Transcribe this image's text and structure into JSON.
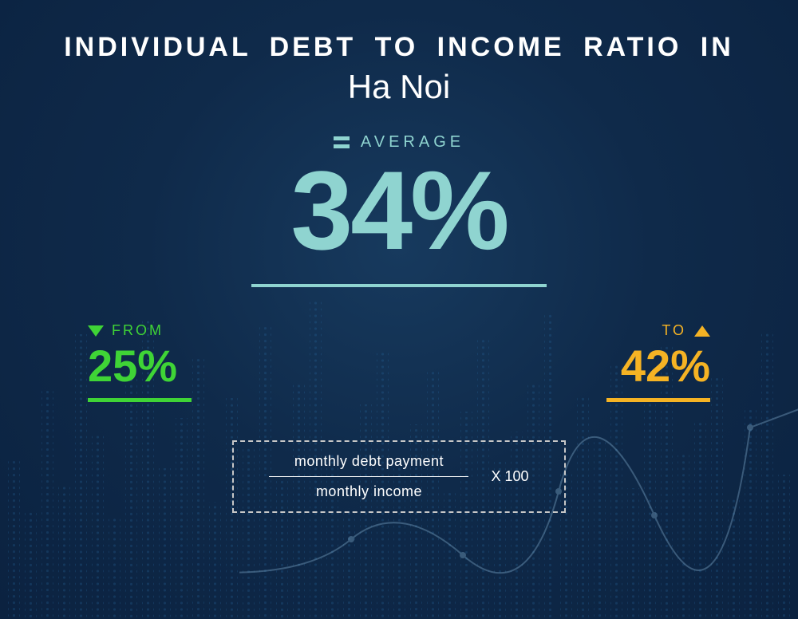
{
  "colors": {
    "background_center": "#173a5e",
    "background_mid": "#0f2a4a",
    "background_edge": "#0b2240",
    "title": "#ffffff",
    "average": "#8fd4d0",
    "from": "#3fd436",
    "to": "#f5b324",
    "formula_border": "#c7c7c7",
    "formula_text": "#ffffff",
    "dot_bars": "#2a6fa8",
    "line_stroke": "#7da8c8"
  },
  "title": {
    "line1": "INDIVIDUAL DEBT TO INCOME RATIO IN",
    "line2": "Ha Noi",
    "line1_fontsize": 34,
    "line2_fontsize": 42,
    "letter_spacing": 4
  },
  "average": {
    "label": "AVERAGE",
    "value": "34%",
    "label_fontsize": 20,
    "value_fontsize": 140,
    "underline_width": 370
  },
  "range": {
    "from": {
      "label": "FROM",
      "value": "25%",
      "direction": "down"
    },
    "to": {
      "label": "TO",
      "value": "42%",
      "direction": "up"
    },
    "label_fontsize": 18,
    "value_fontsize": 56,
    "underline_width": 130
  },
  "formula": {
    "numerator": "monthly debt payment",
    "denominator": "monthly income",
    "multiplier": "X 100",
    "fontsize": 18
  },
  "decor": {
    "bar_heights_pct": [
      48,
      32,
      68,
      40,
      85,
      55,
      30,
      72,
      90,
      45,
      60,
      78,
      35,
      66,
      52,
      88,
      42,
      70,
      95,
      50,
      33,
      64,
      80,
      46,
      58,
      74,
      38,
      62,
      84,
      47,
      56,
      71,
      92,
      44,
      67,
      53,
      76,
      39,
      65,
      82,
      49,
      59,
      73,
      36,
      63,
      86,
      43
    ]
  }
}
